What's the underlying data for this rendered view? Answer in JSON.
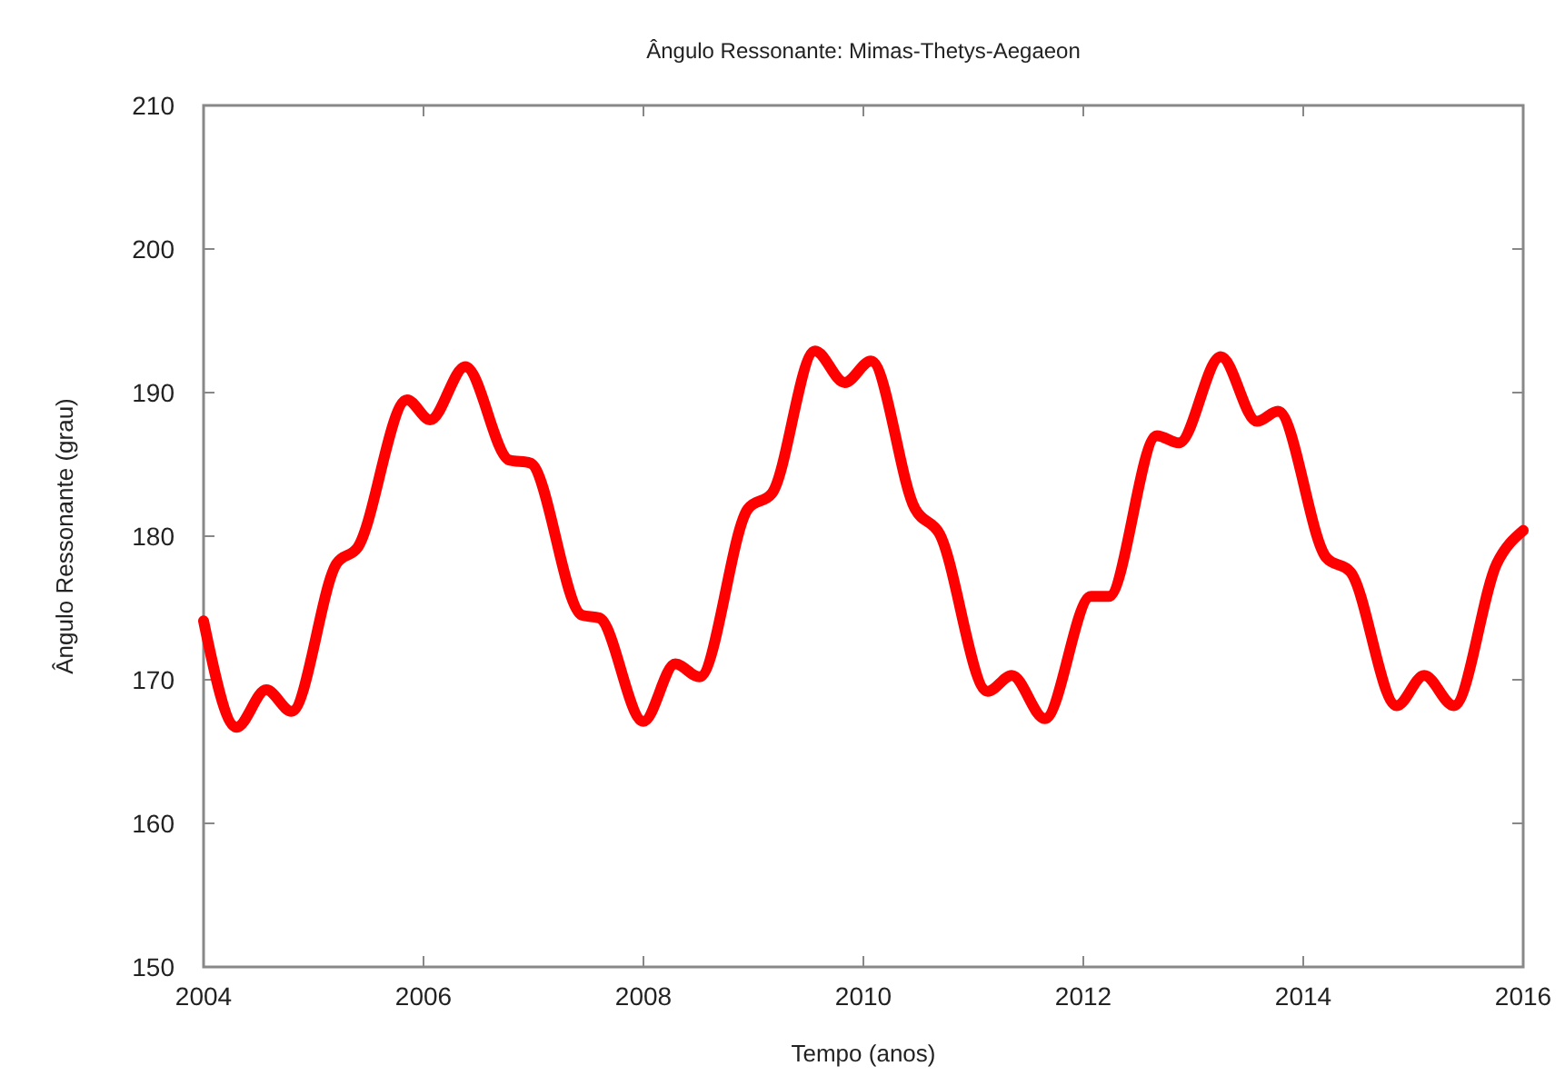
{
  "chart_data": {
    "type": "line",
    "title": "Ângulo Ressonante: Mimas-Thetys-Aegaeon",
    "xlabel": "Tempo (anos)",
    "ylabel": "Ângulo Ressonante (grau)",
    "x": [
      2004.0,
      2004.3,
      2004.57,
      2004.8,
      2005.21,
      2005.4,
      2005.85,
      2006.06,
      2006.38,
      2006.78,
      2006.97,
      2007.44,
      2007.6,
      2008.0,
      2008.29,
      2008.51,
      2008.95,
      2009.17,
      2009.56,
      2009.83,
      2010.07,
      2010.47,
      2010.69,
      2011.13,
      2011.35,
      2011.65,
      2012.07,
      2012.23,
      2012.67,
      2012.87,
      2013.25,
      2013.58,
      2013.77,
      2014.21,
      2014.43,
      2014.85,
      2015.1,
      2015.37,
      2015.76,
      2016.0
    ],
    "series": [
      {
        "color": "#ff0000",
        "values": [
          174.1,
          166.7,
          169.3,
          167.8,
          178.1,
          179.2,
          189.5,
          188.1,
          191.8,
          185.3,
          185.1,
          174.5,
          174.3,
          167.1,
          171.1,
          170.2,
          181.9,
          183.0,
          192.9,
          190.7,
          192.2,
          181.9,
          180.2,
          169.2,
          170.3,
          167.3,
          175.8,
          175.8,
          187.0,
          186.5,
          192.5,
          188.0,
          188.7,
          178.5,
          177.5,
          168.2,
          170.3,
          168.2,
          178.1,
          180.4
        ]
      }
    ],
    "xlim": [
      2004,
      2016
    ],
    "xticks": [
      2004,
      2006,
      2008,
      2010,
      2012,
      2014,
      2016
    ],
    "ylim": [
      150,
      210
    ],
    "yticks": [
      150,
      160,
      170,
      180,
      190,
      200,
      210
    ],
    "grid": false,
    "marker": "none",
    "line_style": "solid"
  }
}
